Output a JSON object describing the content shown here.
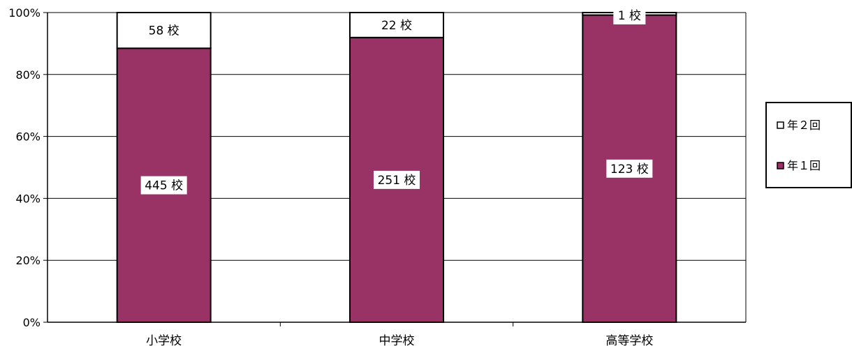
{
  "chart_data": {
    "type": "bar",
    "stacked": "percent",
    "categories": [
      "小学校",
      "中学校",
      "高等学校"
    ],
    "series": [
      {
        "name": "年１回",
        "values": [
          445,
          251,
          123
        ],
        "labels": [
          "445 校",
          "251 校",
          "123 校"
        ],
        "color": "#993366"
      },
      {
        "name": "年２回",
        "values": [
          58,
          22,
          1
        ],
        "labels": [
          "58 校",
          "22 校",
          "1 校"
        ],
        "color": "#ffffff"
      }
    ],
    "yticks": [
      "0%",
      "20%",
      "40%",
      "60%",
      "80%",
      "100%"
    ],
    "ylim": [
      0,
      100
    ],
    "grid": true,
    "legend": {
      "placement": "right",
      "entries": [
        "年２回",
        "年１回"
      ]
    }
  }
}
